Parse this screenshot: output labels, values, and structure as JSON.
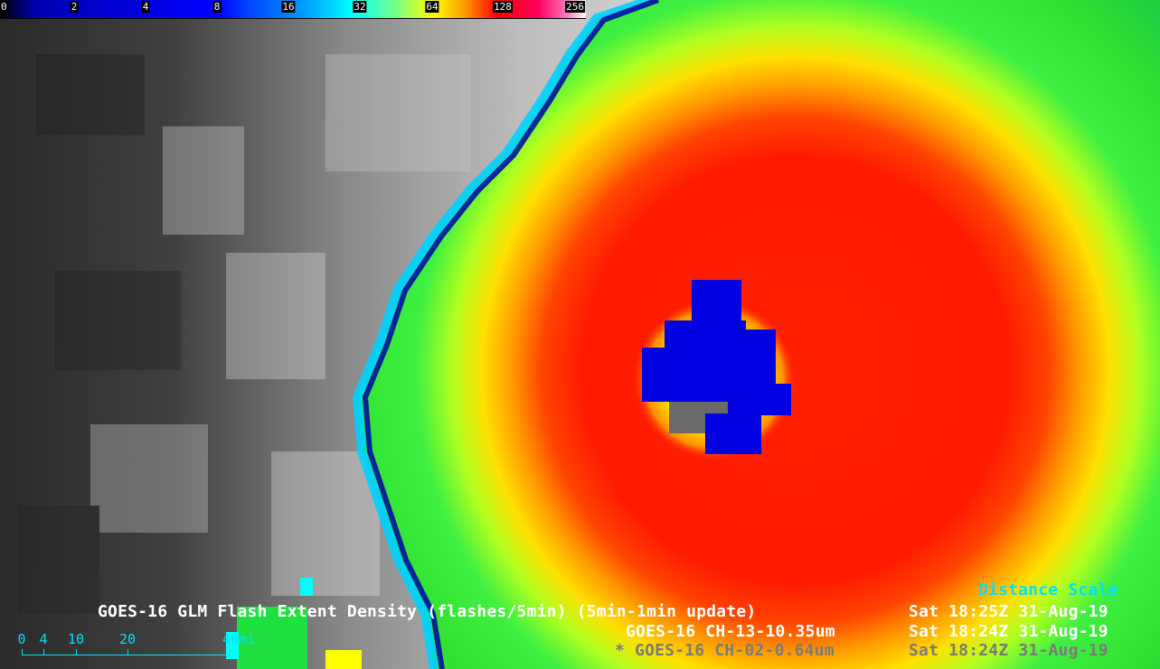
{
  "colorbar": {
    "ticks": [
      "0",
      "2",
      "4",
      "8",
      "16",
      "32",
      "64",
      "128",
      "256"
    ],
    "color_stops": [
      "#000000",
      "#0000b0",
      "#0000ff",
      "#00a8ff",
      "#00ffff",
      "#80ff80",
      "#ffff00",
      "#ffa000",
      "#ff0000",
      "#ff0060",
      "#ffffff"
    ]
  },
  "overlay": {
    "distance_scale_title": "Distance Scale",
    "line1_product": "GOES-16 GLM Flash Extent Density (flashes/5min) (5min-1min update)",
    "line1_time": "Sat 18:25Z 31-Aug-19",
    "line2_product": "GOES-16 CH-13-10.35um",
    "line2_time": "Sat 18:24Z 31-Aug-19",
    "line3_product": "* GOES-16 CH-02-0.64um",
    "line3_time": "Sat 18:24Z 31-Aug-19"
  },
  "distance_scale": {
    "labels": [
      "0",
      "4",
      "10",
      "20",
      "40mi"
    ]
  },
  "colors": {
    "label_white": "#ffffff",
    "label_gray": "#7a7a7a",
    "label_cyan": "#00e0ff",
    "eyewall_red": "#ff1000",
    "outer_green": "#40f040",
    "flash_blue": "#0000e0"
  }
}
